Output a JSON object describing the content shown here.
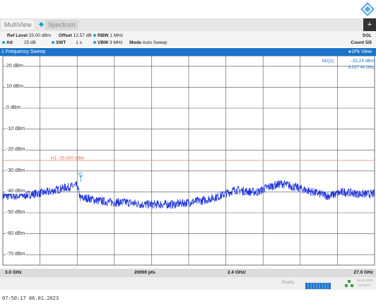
{
  "tabs": {
    "multiview": "MultiView",
    "spectrum": "Spectrum"
  },
  "params": {
    "ref_level_label": "Ref Level",
    "ref_level_value": "25.00 dBm",
    "offset_label": "Offset",
    "offset_value": "12.57 dB",
    "rbw_label": "RBW",
    "rbw_value": "1 MHz",
    "att_label": "Att",
    "att_value": "25 dB",
    "swt_label": "SWT",
    "swt_value": "1 s",
    "vbw_label": "VBW",
    "vbw_value": "3 MHz",
    "mode_label": "Mode",
    "mode_value": "Auto Sweep",
    "sgl": "SGL",
    "count": "Count 5/5"
  },
  "window": {
    "title": "1 Frequency Sweep",
    "trace_label": "1Pk View"
  },
  "marker": {
    "name": "M1[1]",
    "level": "-33.24 dBm",
    "freq": "8.027 40 GHz",
    "label": "M1"
  },
  "threshold": {
    "label": "H1 -25.000 dBm",
    "level_dbm": -25
  },
  "footer": {
    "start": "3.0 GHz",
    "points": "20000 pts",
    "span": "2.4 GHz/",
    "stop": "27.0 GHz"
  },
  "status": {
    "ready": "Ready",
    "date": "06.01.2023",
    "time": "07:50:17"
  },
  "timestamp": "07:50:17  06.01.2023",
  "colors": {
    "trace": "#1a2fd8",
    "threshold": "#e8867a",
    "accent": "#1b74c9",
    "grid": "#505050"
  },
  "chart_data": {
    "type": "line",
    "xlim": [
      3.0,
      27.0
    ],
    "ylim": [
      -75,
      25
    ],
    "y_ticks": [
      20,
      10,
      0,
      -10,
      -20,
      -30,
      -40,
      -50,
      -60,
      -70
    ],
    "y_tick_labels": [
      "20 dBm",
      "10 dBm",
      "0 dBm",
      "-10 dBm",
      "-20 dBm",
      "-30 dBm",
      "-40 dBm",
      "-50 dBm",
      "-60 dBm",
      "-70 dBm"
    ],
    "series": [
      {
        "x": [
          3.0,
          4.0,
          5.0,
          6.0,
          7.0,
          7.8,
          8.0,
          8.5,
          9.0,
          10.0,
          11.0,
          12.0,
          13.0,
          14.0,
          15.0,
          16.0,
          17.0,
          18.0,
          19.0,
          19.5,
          20.0,
          20.5,
          21.0,
          21.5,
          22.0,
          22.5,
          23.0,
          24.0,
          25.0,
          26.0,
          27.0
        ],
        "y": [
          -42,
          -42,
          -41,
          -40,
          -38,
          -37,
          -43,
          -43,
          -44,
          -45,
          -45,
          -46,
          -46,
          -46,
          -45,
          -44,
          -42,
          -39,
          -40,
          -40,
          -38,
          -37,
          -36,
          -37,
          -38,
          -39,
          -40,
          -42,
          -40,
          -41,
          -41
        ]
      }
    ],
    "marker": {
      "x": 8.0274,
      "y": -33.24
    }
  }
}
